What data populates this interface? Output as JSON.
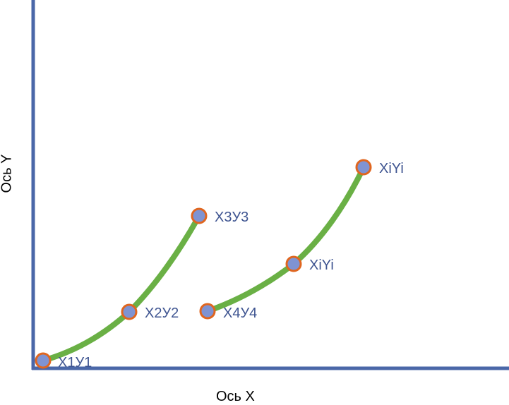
{
  "axes": {
    "x_title": "Ось X",
    "y_title": "Ось Y"
  },
  "colors": {
    "axis": "#4a67a8",
    "curve": "#6ab045",
    "point_fill": "#7f93d2",
    "point_stroke": "#e0661f",
    "label": "#3f5591"
  },
  "points": [
    {
      "id": "p1",
      "label": "X1У1"
    },
    {
      "id": "p2",
      "label": "X2У2"
    },
    {
      "id": "p3",
      "label": "X3У3"
    },
    {
      "id": "p4",
      "label": "X4У4"
    },
    {
      "id": "p5",
      "label": "XiYi"
    },
    {
      "id": "p6",
      "label": "XiYi"
    }
  ]
}
